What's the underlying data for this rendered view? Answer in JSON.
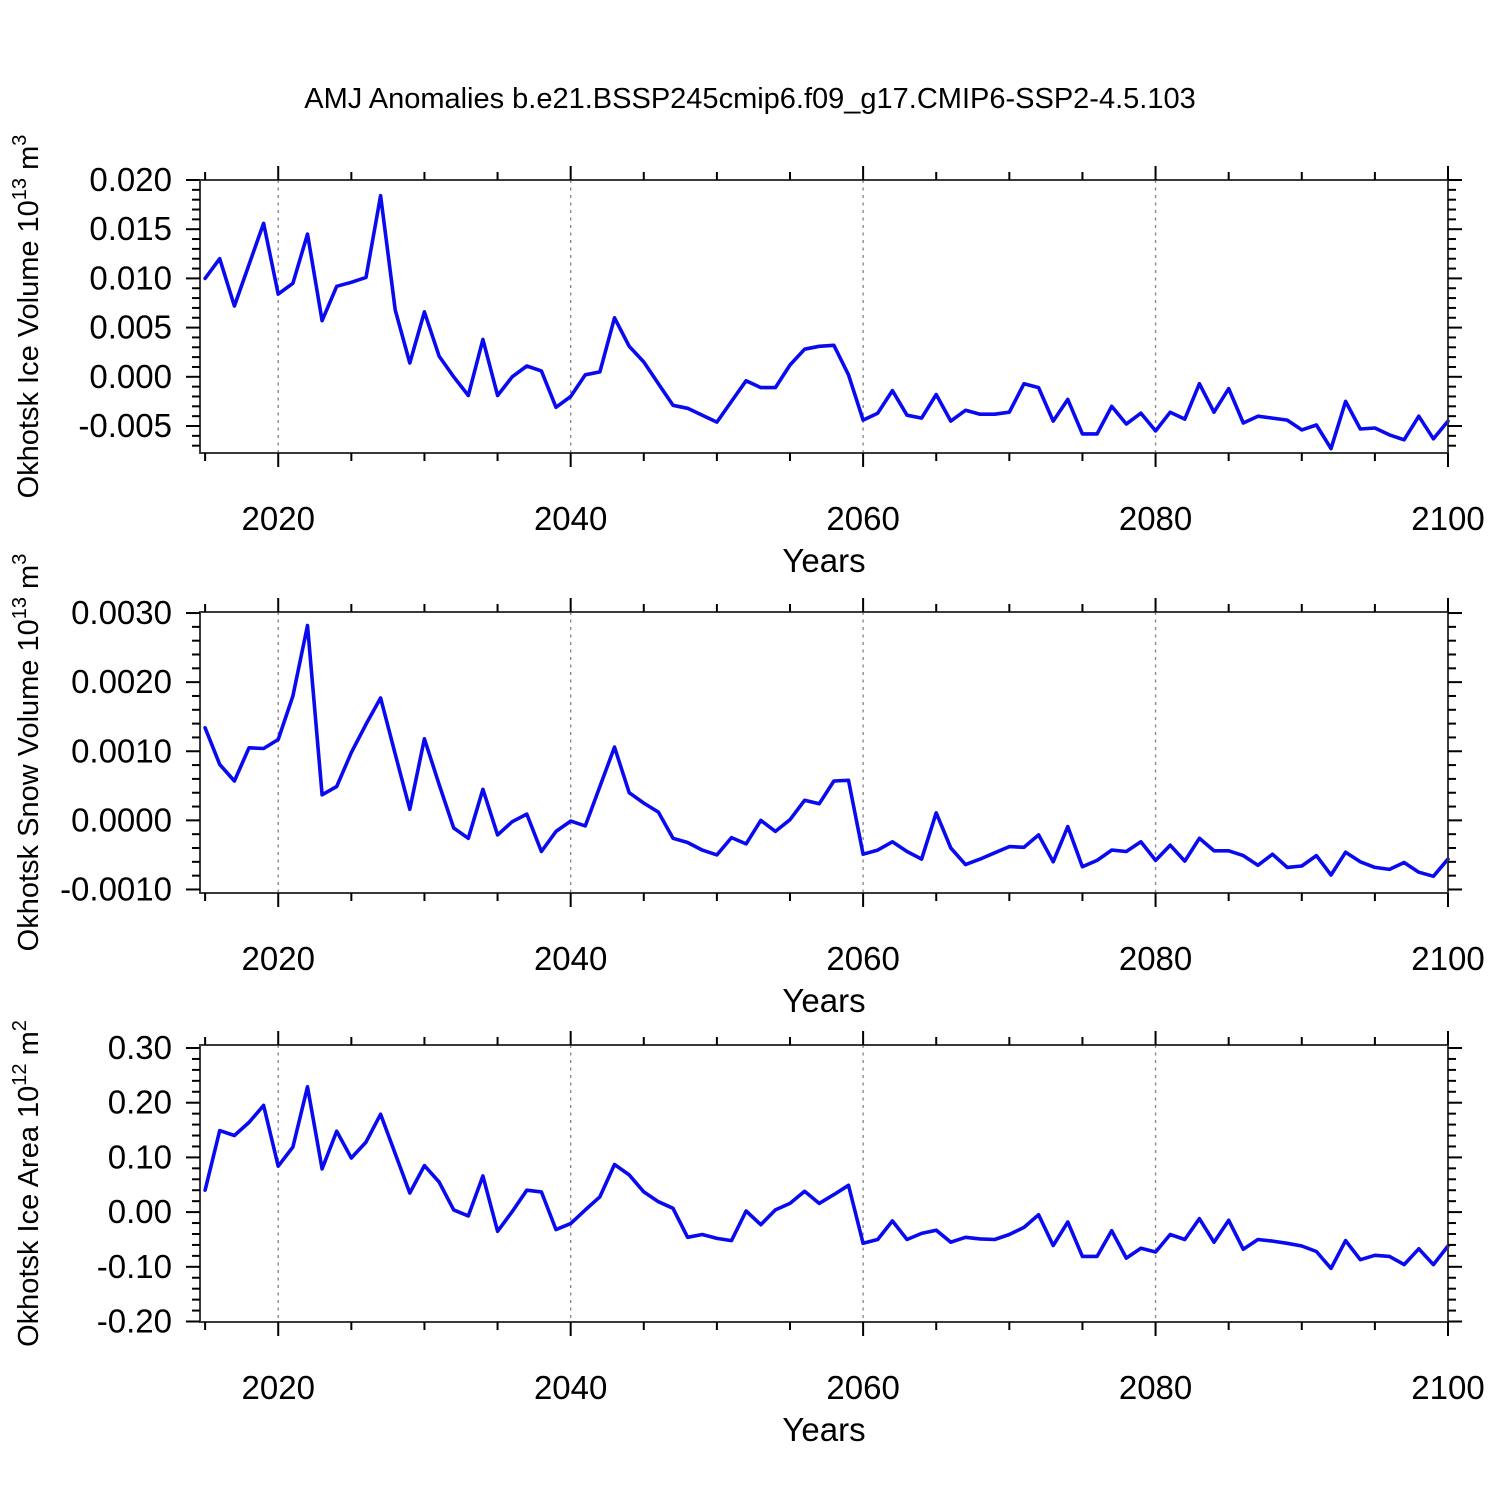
{
  "title": "AMJ Anomalies b.e21.BSSP245cmip6.f09_g17.CMIP6-SSP2-4.5.103",
  "colors": {
    "line": "#0a0af0",
    "frame": "#3a3a3a",
    "tick": "#000000",
    "grid": "#8a8a8a",
    "text": "#000000",
    "background": "#ffffff"
  },
  "x_axis": {
    "label": "Years",
    "ticks": [
      2020,
      2040,
      2060,
      2080,
      2100
    ],
    "tick_labels": [
      "2020",
      "2040",
      "2060",
      "2080",
      "2100"
    ],
    "minor_step": 5,
    "grid_years": [
      2020,
      2040,
      2060,
      2080
    ],
    "range": [
      2014.65,
      2100.0
    ]
  },
  "years": [
    2015,
    2016,
    2017,
    2018,
    2019,
    2020,
    2021,
    2022,
    2023,
    2024,
    2025,
    2026,
    2027,
    2028,
    2029,
    2030,
    2031,
    2032,
    2033,
    2034,
    2035,
    2036,
    2037,
    2038,
    2039,
    2040,
    2041,
    2042,
    2043,
    2044,
    2045,
    2046,
    2047,
    2048,
    2049,
    2050,
    2051,
    2052,
    2053,
    2054,
    2055,
    2056,
    2057,
    2058,
    2059,
    2060,
    2061,
    2062,
    2063,
    2064,
    2065,
    2066,
    2067,
    2068,
    2069,
    2070,
    2071,
    2072,
    2073,
    2074,
    2075,
    2076,
    2077,
    2078,
    2079,
    2080,
    2081,
    2082,
    2083,
    2084,
    2085,
    2086,
    2087,
    2088,
    2089,
    2090,
    2091,
    2092,
    2093,
    2094,
    2095,
    2096,
    2097,
    2098,
    2099,
    2100
  ],
  "chart_data": [
    {
      "type": "line",
      "name": "okhotsk-ice-volume",
      "ylabel": "Okhotsk Ice Volume 10^13 m^3",
      "ylabel_parts": [
        {
          "t": "Okhotsk Ice Volume 10",
          "sup": false
        },
        {
          "t": "13",
          "sup": true
        },
        {
          "t": " m",
          "sup": false
        },
        {
          "t": "3",
          "sup": true
        }
      ],
      "xlabel": "Years",
      "yticks": [
        0.02,
        0.015,
        0.01,
        0.005,
        0.0,
        -0.005
      ],
      "ytick_labels": [
        "0.020",
        "0.015",
        "0.010",
        "0.005",
        "0.000",
        "-0.005"
      ],
      "ytick_step": 0.005,
      "yminor_step": 0.001,
      "ylim": [
        -0.007744,
        0.02
      ],
      "grid": "x-dashed",
      "legend": "none",
      "values": [
        0.01,
        0.012,
        0.0072,
        0.0114,
        0.0156,
        0.0084,
        0.0095,
        0.0145,
        0.0057,
        0.0092,
        0.0096,
        0.0101,
        0.0184,
        0.0068,
        0.0014,
        0.0066,
        0.0021,
        0.0,
        -0.0019,
        0.0038,
        -0.0019,
        0.0,
        0.0011,
        0.0006,
        -0.0031,
        -0.002,
        0.0002,
        0.0005,
        0.006,
        0.0031,
        0.0015,
        -0.0007,
        -0.0029,
        -0.0032,
        -0.0039,
        -0.0046,
        -0.0025,
        -0.0004,
        -0.0011,
        -0.0011,
        0.0012,
        0.0028,
        0.0031,
        0.0032,
        0.0002,
        -0.0044,
        -0.0037,
        -0.0014,
        -0.0039,
        -0.0042,
        -0.0018,
        -0.0045,
        -0.0034,
        -0.0038,
        -0.0038,
        -0.0036,
        -0.0007,
        -0.0011,
        -0.0045,
        -0.0023,
        -0.0058,
        -0.0058,
        -0.003,
        -0.0048,
        -0.0037,
        -0.0055,
        -0.0036,
        -0.0043,
        -0.0007,
        -0.0036,
        -0.0012,
        -0.0047,
        -0.004,
        -0.0042,
        -0.0044,
        -0.0054,
        -0.0049,
        -0.0073,
        -0.0025,
        -0.0053,
        -0.0052,
        -0.0059,
        -0.0064,
        -0.004,
        -0.0063,
        -0.0045
      ]
    },
    {
      "type": "line",
      "name": "okhotsk-snow-volume",
      "ylabel": "Okhotsk Snow Volume 10^13 m^3",
      "ylabel_parts": [
        {
          "t": "Okhotsk Snow Volume 10",
          "sup": false
        },
        {
          "t": "13",
          "sup": true
        },
        {
          "t": " m",
          "sup": false
        },
        {
          "t": "3",
          "sup": true
        }
      ],
      "xlabel": "Years",
      "yticks": [
        0.003,
        0.002,
        0.001,
        0.0,
        -0.001
      ],
      "ytick_labels": [
        "0.0030",
        "0.0020",
        "0.0010",
        "0.0000",
        "-0.0010"
      ],
      "ytick_step": 0.001,
      "yminor_step": 0.0002,
      "ylim": [
        -0.001051,
        0.003015
      ],
      "grid": "x-dashed",
      "legend": "none",
      "values": [
        0.00134,
        0.00081,
        0.00057,
        0.00105,
        0.00104,
        0.00117,
        0.0018,
        0.00282,
        0.00037,
        0.00049,
        0.00098,
        0.00139,
        0.00177,
        0.00096,
        0.00016,
        0.00118,
        0.00052,
        -0.00011,
        -0.00026,
        0.00045,
        -0.00021,
        -2e-05,
        9e-05,
        -0.00045,
        -0.00016,
        -1e-05,
        -8e-05,
        0.00049,
        0.00106,
        0.0004,
        0.00025,
        0.00012,
        -0.00026,
        -0.00032,
        -0.00043,
        -0.0005,
        -0.00025,
        -0.00034,
        0.0,
        -0.00016,
        1e-05,
        0.00029,
        0.00024,
        0.00057,
        0.00058,
        -0.00049,
        -0.00043,
        -0.00031,
        -0.00045,
        -0.00056,
        0.00011,
        -0.0004,
        -0.00064,
        -0.00056,
        -0.00047,
        -0.00038,
        -0.00039,
        -0.00021,
        -0.0006,
        -9e-05,
        -0.00067,
        -0.00058,
        -0.00043,
        -0.00045,
        -0.00031,
        -0.00058,
        -0.00036,
        -0.00059,
        -0.00026,
        -0.00044,
        -0.00044,
        -0.00051,
        -0.00065,
        -0.00049,
        -0.00068,
        -0.00066,
        -0.00051,
        -0.00079,
        -0.00046,
        -0.0006,
        -0.00068,
        -0.00071,
        -0.00061,
        -0.00075,
        -0.00081,
        -0.00056
      ]
    },
    {
      "type": "line",
      "name": "okhotsk-ice-area",
      "ylabel": "Okhotsk Ice Area 10^12 m^2",
      "ylabel_parts": [
        {
          "t": "Okhotsk Ice Area 10",
          "sup": false
        },
        {
          "t": "12",
          "sup": true
        },
        {
          "t": " m",
          "sup": false
        },
        {
          "t": "2",
          "sup": true
        }
      ],
      "xlabel": "Years",
      "yticks": [
        0.3,
        0.2,
        0.1,
        0.0,
        -0.1,
        -0.2
      ],
      "ytick_labels": [
        "0.30",
        "0.20",
        "0.10",
        "0.00",
        "-0.10",
        "-0.20"
      ],
      "ytick_step": 0.1,
      "yminor_step": 0.02,
      "ylim": [
        -0.2009,
        0.3055
      ],
      "grid": "x-dashed",
      "legend": "none",
      "values": [
        0.04,
        0.149,
        0.14,
        0.164,
        0.195,
        0.084,
        0.119,
        0.229,
        0.079,
        0.148,
        0.099,
        0.128,
        0.179,
        0.107,
        0.035,
        0.085,
        0.055,
        0.004,
        -0.007,
        0.066,
        -0.035,
        0.001,
        0.04,
        0.037,
        -0.032,
        -0.021,
        0.004,
        0.028,
        0.087,
        0.068,
        0.037,
        0.019,
        0.007,
        -0.046,
        -0.041,
        -0.048,
        -0.052,
        0.002,
        -0.023,
        0.004,
        0.016,
        0.038,
        0.016,
        0.032,
        0.049,
        -0.057,
        -0.05,
        -0.016,
        -0.05,
        -0.039,
        -0.033,
        -0.055,
        -0.046,
        -0.049,
        -0.05,
        -0.041,
        -0.028,
        -0.005,
        -0.061,
        -0.018,
        -0.081,
        -0.081,
        -0.034,
        -0.084,
        -0.066,
        -0.073,
        -0.041,
        -0.05,
        -0.012,
        -0.055,
        -0.015,
        -0.068,
        -0.05,
        -0.053,
        -0.057,
        -0.062,
        -0.072,
        -0.103,
        -0.052,
        -0.087,
        -0.079,
        -0.081,
        -0.096,
        -0.067,
        -0.096,
        -0.062
      ]
    }
  ]
}
